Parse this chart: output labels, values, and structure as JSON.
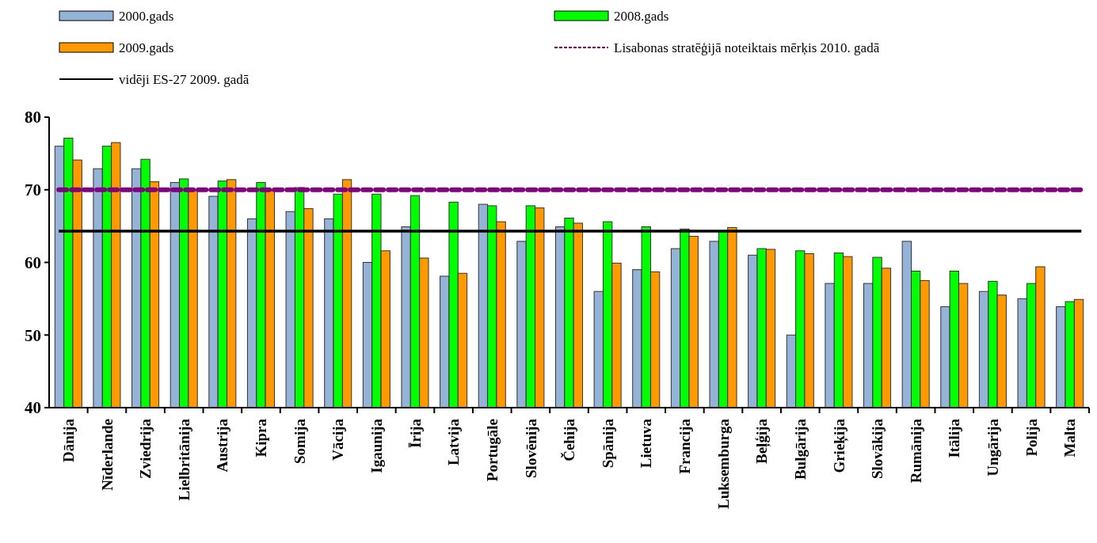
{
  "chart_data": {
    "type": "bar",
    "categories": [
      "Dānija",
      "Nīderlande",
      "Zviedrija",
      "Lielbritānija",
      "Austrija",
      "Kipra",
      "Somija",
      "Vācija",
      "Igaunija",
      "Īrija",
      "Latvija",
      "Portugāle",
      "Slovēnija",
      "Čehija",
      "Spānija",
      "Lietuva",
      "Francija",
      "Luksemburga",
      "Beļģija",
      "Bulgārija",
      "Grieķija",
      "Slovākija",
      "Rumānija",
      "Itālija",
      "Ungārija",
      "Polija",
      "Malta"
    ],
    "series": [
      {
        "name": "2000.gads",
        "color": "#95b3d7",
        "values": [
          76.0,
          72.9,
          72.9,
          71.0,
          69.1,
          66.0,
          67.0,
          66.0,
          60.0,
          64.9,
          58.1,
          68.0,
          62.9,
          64.9,
          56.0,
          59.0,
          61.9,
          62.9,
          61.0,
          50.0,
          57.1,
          57.1,
          62.9,
          53.9,
          56.0,
          55.0,
          53.9
        ]
      },
      {
        "name": "2008.gads",
        "color": "#00ff00",
        "values": [
          77.1,
          76.0,
          74.2,
          71.5,
          71.2,
          71.0,
          70.3,
          69.4,
          69.4,
          69.2,
          68.3,
          67.8,
          67.8,
          66.1,
          65.6,
          64.9,
          64.6,
          64.3,
          61.9,
          61.6,
          61.3,
          60.7,
          58.8,
          58.8,
          57.4,
          57.1,
          54.6
        ]
      },
      {
        "name": "2009.gads",
        "color": "#ff9900",
        "values": [
          74.1,
          76.5,
          71.1,
          69.9,
          71.4,
          69.9,
          67.4,
          71.4,
          61.6,
          60.6,
          58.5,
          65.6,
          67.5,
          65.4,
          59.9,
          58.7,
          63.6,
          64.8,
          61.8,
          61.2,
          60.8,
          59.2,
          57.5,
          57.1,
          55.5,
          59.4,
          54.9
        ]
      }
    ],
    "ref_lines": [
      {
        "axis": "y",
        "value": 70,
        "label": "Lisabonas stratēģijā noteiktais mērķis 2010. gadā",
        "color": "#800080",
        "line_style": "dashed"
      },
      {
        "axis": "y",
        "value": 64.3,
        "label": "vidēji ES-27 2009. gadā",
        "color": "#000000",
        "line_style": "solid"
      }
    ],
    "ylim": [
      40,
      80
    ],
    "yticks": [
      40,
      50,
      60,
      70,
      80
    ],
    "legend": "top"
  }
}
